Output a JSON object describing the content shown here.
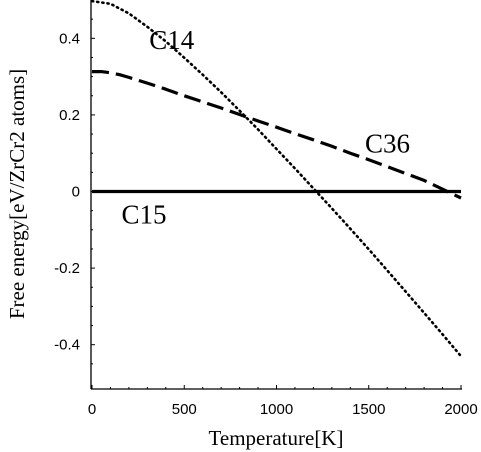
{
  "chart_data": {
    "type": "line",
    "title": "",
    "xlabel": "Temperature[K]",
    "ylabel": "Free energy[eV/ZrCr2 atoms]",
    "xlim": [
      0,
      2000
    ],
    "ylim": [
      -0.5,
      0.5
    ],
    "xticks": [
      0,
      500,
      1000,
      1500,
      2000
    ],
    "xtick_labels": [
      "0",
      "500",
      "1000",
      "1500",
      "2000"
    ],
    "yticks": [
      0.4,
      0.2,
      0,
      -0.2,
      -0.4
    ],
    "ytick_labels": [
      "0.4",
      "0.2",
      "0",
      "-0.2",
      "-0.4"
    ],
    "grid": false,
    "legend": "none",
    "series": [
      {
        "name": "C15",
        "style": "solid",
        "color": "#000000",
        "x": [
          0,
          500,
          1000,
          1500,
          2000
        ],
        "y": [
          0,
          0,
          0,
          0,
          0
        ]
      },
      {
        "name": "C36",
        "style": "dashed",
        "color": "#000000",
        "x": [
          0,
          50,
          100,
          150,
          200,
          300,
          400,
          500,
          600,
          700,
          800,
          900,
          1000,
          1100,
          1200,
          1300,
          1400,
          1500,
          1600,
          1700,
          1800,
          1900,
          2000
        ],
        "y": [
          0.313,
          0.313,
          0.31,
          0.305,
          0.298,
          0.283,
          0.267,
          0.25,
          0.234,
          0.218,
          0.201,
          0.184,
          0.168,
          0.151,
          0.135,
          0.118,
          0.1,
          0.083,
          0.065,
          0.047,
          0.029,
          0.006,
          -0.017
        ]
      },
      {
        "name": "C14",
        "style": "dotted",
        "color": "#000000",
        "x": [
          0,
          100,
          200,
          300,
          400,
          500,
          600,
          700,
          800,
          900,
          1000,
          1100,
          1200,
          1300,
          1400,
          1500,
          1600,
          1700,
          1800,
          1900,
          2000
        ],
        "y": [
          0.497,
          0.49,
          0.465,
          0.43,
          0.392,
          0.349,
          0.305,
          0.259,
          0.211,
          0.162,
          0.111,
          0.06,
          0.008,
          -0.044,
          -0.097,
          -0.151,
          -0.206,
          -0.261,
          -0.317,
          -0.373,
          -0.43
        ]
      }
    ],
    "annotations": [
      {
        "text": "C14",
        "series": "C14",
        "x": 310,
        "y": 0.395
      },
      {
        "text": "C36",
        "series": "C36",
        "x": 1480,
        "y": 0.125
      },
      {
        "text": "C15",
        "series": "C15",
        "x": 160,
        "y": -0.06
      }
    ]
  }
}
